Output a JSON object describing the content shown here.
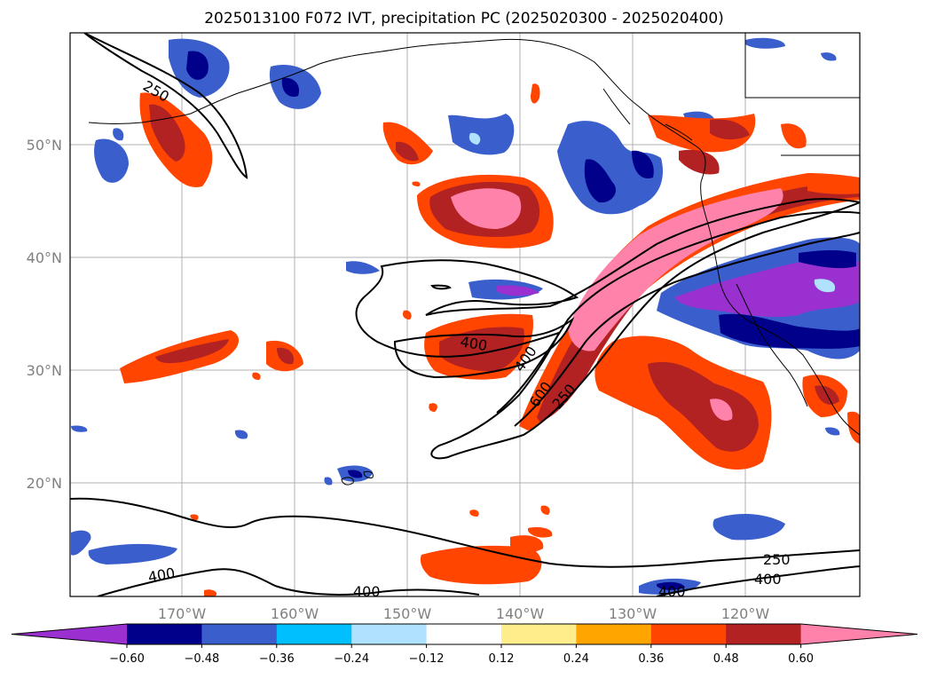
{
  "title": "2025013100 F072 IVT, precipitation PC (2025020300 - 2025020400)",
  "map": {
    "lon_ticks": [
      "170°W",
      "160°W",
      "150°W",
      "140°W",
      "130°W",
      "120°W"
    ],
    "lat_ticks": [
      "50°N",
      "40°N",
      "30°N",
      "20°N"
    ]
  },
  "contour_labels": [
    "250",
    "400",
    "400",
    "600",
    "250",
    "400",
    "400",
    "400",
    "250",
    "400"
  ],
  "colorbar": {
    "ticks": [
      "−0.60",
      "−0.48",
      "−0.36",
      "−0.24",
      "−0.12",
      "0.12",
      "0.24",
      "0.36",
      "0.48",
      "0.60"
    ],
    "colors": [
      "#9b30d0",
      "#00008b",
      "#3a5fcd",
      "#00bfff",
      "#b0e2ff",
      "#ffffff",
      "#ffec8b",
      "#ffa500",
      "#ff4500",
      "#b22222",
      "#ff82ab"
    ]
  }
}
